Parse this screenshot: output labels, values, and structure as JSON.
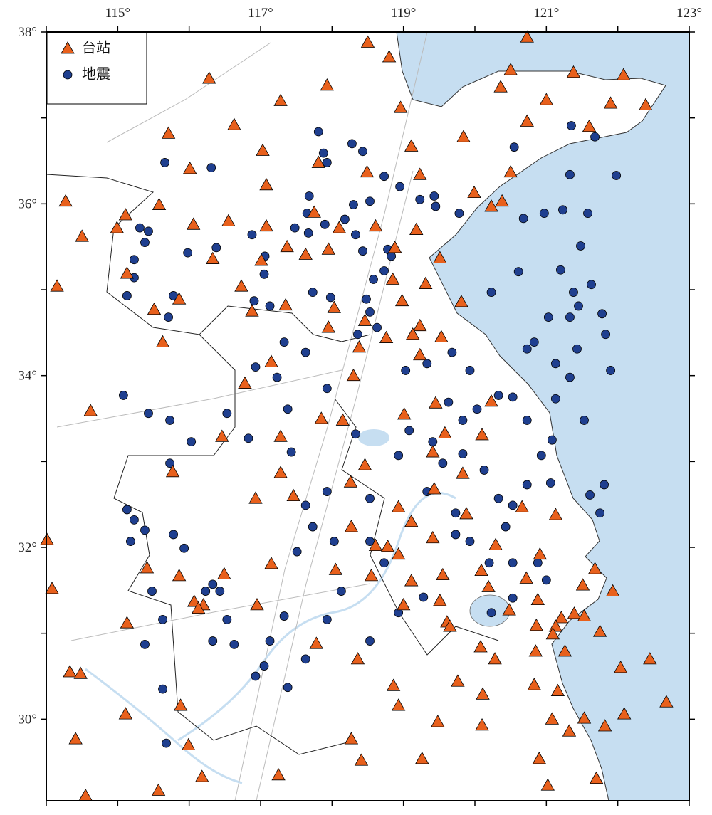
{
  "chart_data": {
    "type": "scatter",
    "xlim": [
      114,
      123
    ],
    "ylim": [
      29.05,
      38
    ],
    "xticks": [
      {
        "value": 115,
        "label": "115°"
      },
      {
        "value": 117,
        "label": "117°"
      },
      {
        "value": 119,
        "label": "119°"
      },
      {
        "value": 121,
        "label": "121°"
      },
      {
        "value": 123,
        "label": "123°"
      }
    ],
    "yticks": [
      {
        "value": 30,
        "label": "30°"
      },
      {
        "value": 32,
        "label": "32°"
      },
      {
        "value": 34,
        "label": "34°"
      },
      {
        "value": 36,
        "label": "36°"
      },
      {
        "value": 38,
        "label": "38°"
      }
    ],
    "x_minor_ticks": [
      114,
      116,
      118,
      120,
      122
    ],
    "y_minor_ticks": [
      31,
      33,
      35,
      37
    ],
    "legend": "upper left",
    "series": [
      {
        "name": "台站",
        "color": "#e8601c",
        "marker": "triangle",
        "x": [
          118.5,
          118.8,
          120.73,
          120.5,
          121.38,
          122.08,
          120.36,
          122.39,
          121.9,
          121.0,
          118.96,
          117.93,
          117.28,
          116.28,
          116.63,
          115.71,
          120.73,
          119.84,
          119.11,
          121.6,
          117.03,
          117.81,
          118.49,
          119.23,
          120.5,
          116.01,
          117.08,
          119.99,
          114.27,
          120.23,
          120.38,
          115.58,
          115.11,
          114.99,
          114.5,
          116.06,
          116.55,
          117.08,
          117.75,
          118.1,
          118.61,
          119.18,
          117.37,
          117.63,
          117.95,
          118.88,
          116.33,
          117.01,
          119.51,
          115.13,
          114.15,
          116.73,
          118.85,
          119.31,
          115.86,
          115.51,
          117.35,
          116.88,
          118.03,
          119.81,
          118.98,
          118.46,
          117.95,
          119.23,
          118.76,
          115.63,
          119.13,
          119.53,
          118.38,
          119.23,
          117.15,
          118.3,
          116.78,
          114.62,
          119.01,
          119.45,
          120.23,
          118.15,
          117.85,
          119.58,
          120.1,
          116.46,
          117.28,
          118.46,
          119.41,
          119.83,
          115.77,
          117.28,
          118.26,
          119.43,
          117.46,
          116.93,
          118.93,
          119.88,
          120.66,
          118.27,
          119.11,
          121.13,
          120.29,
          118.78,
          118.61,
          114.01,
          119.41,
          118.93,
          120.91,
          115.41,
          118.05,
          117.15,
          118.55,
          119.55,
          120.09,
          121.68,
          115.86,
          116.49,
          114.08,
          119.11,
          120.72,
          121.51,
          121.93,
          120.19,
          116.07,
          116.2,
          116.13,
          119.0,
          119.51,
          116.95,
          120.88,
          120.48,
          121.39,
          121.53,
          121.21,
          119.61,
          119.65,
          115.13,
          121.13,
          121.75,
          120.86,
          121.09,
          120.08,
          120.85,
          121.26,
          117.78,
          118.36,
          120.28,
          122.04,
          122.45,
          114.33,
          114.48,
          118.86,
          119.76,
          120.83,
          121.16,
          115.88,
          120.11,
          118.93,
          122.68,
          122.09,
          115.11,
          121.08,
          119.48,
          121.53,
          120.1,
          121.32,
          121.82,
          114.41,
          115.99,
          118.27,
          120.9,
          119.26,
          121.7,
          116.18,
          117.25,
          118.41,
          115.57,
          114.55,
          121.02
        ],
        "values": [
          37.88,
          37.71,
          37.94,
          37.56,
          37.53,
          37.5,
          37.36,
          37.15,
          37.17,
          37.21,
          37.12,
          37.38,
          37.2,
          37.46,
          36.92,
          36.82,
          36.96,
          36.78,
          36.67,
          36.9,
          36.62,
          36.48,
          36.37,
          36.34,
          36.37,
          36.41,
          36.22,
          36.13,
          36.03,
          35.97,
          36.03,
          35.99,
          35.87,
          35.72,
          35.62,
          35.76,
          35.8,
          35.74,
          35.9,
          35.72,
          35.74,
          35.7,
          35.5,
          35.41,
          35.47,
          35.49,
          35.36,
          35.34,
          35.37,
          35.19,
          35.04,
          35.04,
          35.12,
          35.07,
          34.89,
          34.77,
          34.82,
          34.75,
          34.79,
          34.86,
          34.87,
          34.64,
          34.56,
          34.58,
          34.44,
          34.39,
          34.48,
          34.45,
          34.33,
          34.24,
          34.16,
          34.0,
          33.91,
          33.59,
          33.55,
          33.68,
          33.7,
          33.48,
          33.5,
          33.33,
          33.31,
          33.29,
          33.29,
          32.96,
          33.11,
          32.86,
          32.88,
          32.87,
          32.76,
          32.68,
          32.6,
          32.57,
          32.47,
          32.39,
          32.47,
          32.24,
          32.3,
          32.38,
          32.03,
          32.01,
          32.02,
          32.09,
          32.11,
          31.92,
          31.92,
          31.76,
          31.74,
          31.81,
          31.67,
          31.68,
          31.73,
          31.75,
          31.67,
          31.69,
          31.52,
          31.61,
          31.64,
          31.56,
          31.49,
          31.54,
          31.37,
          31.33,
          31.29,
          31.33,
          31.38,
          31.33,
          31.39,
          31.27,
          31.23,
          31.2,
          31.18,
          31.13,
          31.08,
          31.12,
          31.08,
          31.02,
          31.09,
          30.99,
          30.84,
          30.79,
          30.79,
          30.88,
          30.7,
          30.7,
          30.6,
          30.7,
          30.55,
          30.53,
          30.39,
          30.44,
          30.4,
          30.33,
          30.16,
          30.29,
          30.16,
          30.2,
          30.06,
          30.06,
          30.0,
          29.97,
          30.01,
          29.93,
          29.86,
          29.92,
          29.77,
          29.7,
          29.77,
          29.54,
          29.54,
          29.31,
          29.33,
          29.35,
          29.52,
          29.17,
          29.11,
          29.23
        ]
      },
      {
        "name": "地震",
        "color": "#1f3f8f",
        "marker": "circle",
        "x": [
          117.81,
          117.88,
          118.43,
          117.93,
          118.28,
          116.31,
          115.66,
          118.73,
          118.95,
          119.23,
          119.43,
          119.45,
          119.78,
          118.53,
          118.3,
          117.65,
          117.68,
          117.48,
          117.67,
          117.9,
          118.18,
          118.33,
          118.43,
          118.78,
          118.83,
          118.73,
          118.58,
          118.48,
          118.53,
          118.63,
          118.36,
          115.31,
          115.43,
          115.38,
          115.23,
          115.23,
          115.13,
          115.78,
          115.71,
          115.98,
          116.38,
          116.88,
          117.06,
          117.05,
          116.91,
          117.13,
          117.98,
          117.73,
          117.33,
          117.63,
          116.93,
          117.23,
          117.93,
          119.03,
          119.33,
          119.68,
          119.93,
          120.33,
          120.53,
          120.73,
          120.03,
          119.63,
          119.83,
          119.41,
          119.55,
          119.83,
          120.13,
          120.33,
          120.53,
          120.73,
          120.93,
          121.08,
          121.33,
          121.13,
          121.43,
          121.83,
          121.9,
          121.78,
          121.33,
          121.03,
          121.13,
          120.61,
          121.2,
          121.38,
          121.63,
          120.23,
          120.73,
          121.53,
          121.61,
          121.81,
          121.75,
          121.06,
          121.0,
          120.53,
          120.2,
          119.93,
          119.28,
          119.73,
          120.23,
          120.53,
          118.93,
          118.73,
          117.93,
          117.63,
          117.51,
          117.33,
          117.13,
          117.05,
          116.93,
          116.63,
          116.33,
          116.53,
          116.33,
          116.23,
          116.43,
          115.93,
          115.78,
          115.38,
          115.13,
          115.23,
          115.18,
          115.48,
          115.63,
          115.38,
          115.63,
          115.68,
          115.08,
          115.43,
          115.73,
          116.03,
          115.73,
          116.53,
          116.83,
          117.43,
          117.38,
          117.73,
          118.03,
          118.13,
          117.93,
          117.63,
          117.38,
          118.53,
          118.53,
          118.93,
          119.08,
          118.33,
          118.53,
          119.33,
          119.73,
          120.43,
          120.88,
          121.45,
          121.48,
          121.58,
          121.23,
          120.68,
          120.97,
          121.33,
          121.68,
          121.98,
          120.55,
          121.35,
          120.83
        ],
        "values": [
          36.84,
          36.59,
          36.61,
          36.48,
          36.7,
          36.42,
          36.48,
          36.32,
          36.2,
          36.05,
          36.09,
          35.97,
          35.89,
          36.03,
          35.99,
          35.89,
          36.09,
          35.72,
          35.66,
          35.76,
          35.82,
          35.64,
          35.45,
          35.47,
          35.39,
          35.22,
          35.12,
          34.89,
          34.74,
          34.56,
          34.48,
          35.72,
          35.68,
          35.55,
          35.14,
          35.35,
          34.93,
          34.93,
          34.68,
          35.43,
          35.49,
          35.64,
          35.39,
          35.18,
          34.87,
          34.81,
          34.91,
          34.97,
          34.39,
          34.27,
          34.1,
          33.98,
          33.85,
          34.06,
          34.14,
          34.27,
          34.06,
          33.77,
          33.75,
          33.48,
          33.61,
          33.69,
          33.48,
          33.23,
          32.98,
          33.09,
          32.9,
          32.57,
          32.49,
          32.73,
          33.07,
          33.25,
          33.98,
          33.73,
          34.31,
          34.48,
          34.06,
          34.72,
          34.68,
          34.68,
          34.14,
          35.21,
          35.23,
          34.97,
          35.06,
          34.97,
          34.31,
          33.48,
          32.61,
          32.73,
          32.4,
          32.75,
          31.62,
          31.82,
          31.82,
          32.07,
          31.42,
          32.15,
          31.24,
          31.41,
          31.24,
          31.82,
          32.65,
          32.49,
          31.95,
          31.2,
          30.91,
          30.62,
          30.5,
          30.87,
          30.91,
          31.16,
          31.57,
          31.49,
          31.49,
          31.99,
          32.15,
          32.2,
          32.44,
          32.32,
          32.07,
          31.49,
          31.16,
          30.87,
          30.35,
          29.72,
          33.77,
          33.56,
          33.48,
          33.23,
          32.98,
          33.56,
          33.27,
          33.11,
          33.61,
          32.24,
          32.07,
          31.49,
          31.16,
          30.7,
          30.37,
          30.91,
          32.07,
          33.07,
          33.36,
          33.32,
          32.57,
          32.65,
          32.4,
          32.24,
          31.82,
          34.81,
          35.51,
          35.89,
          35.93,
          35.83,
          35.89,
          36.34,
          36.78,
          36.33,
          36.66,
          36.91,
          34.39
        ]
      }
    ]
  }
}
